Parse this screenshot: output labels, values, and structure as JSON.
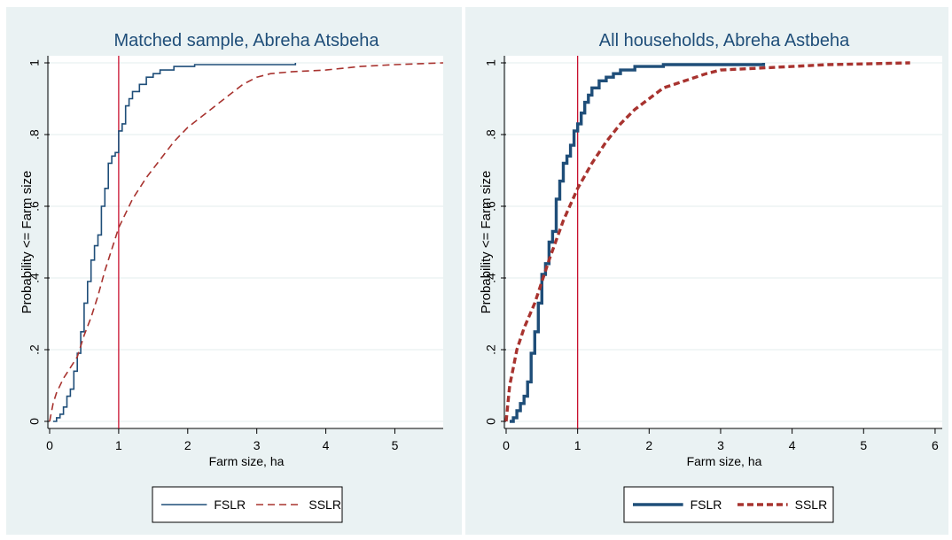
{
  "chart_data": [
    {
      "type": "line",
      "title": "Matched sample, Abreha Atsbeha",
      "xlabel": "Farm size, ha",
      "ylabel": "Probability <= Farm size",
      "xlim": [
        0,
        5.7
      ],
      "ylim": [
        0,
        1
      ],
      "xticks": [
        "0",
        "1",
        "2",
        "3",
        "4",
        "5"
      ],
      "yticks": [
        "0",
        ".2",
        ".4",
        ".6",
        ".8",
        "1"
      ],
      "grid": true,
      "legend": "bottom",
      "reference_line": {
        "x": 1,
        "color": "#c8102e"
      },
      "series": [
        {
          "name": "FSLR",
          "style": "step-solid-thin",
          "color": "#1f4e79",
          "points": [
            [
              0.05,
              0
            ],
            [
              0.1,
              0.01
            ],
            [
              0.15,
              0.02
            ],
            [
              0.2,
              0.04
            ],
            [
              0.25,
              0.07
            ],
            [
              0.3,
              0.09
            ],
            [
              0.35,
              0.14
            ],
            [
              0.4,
              0.19
            ],
            [
              0.45,
              0.25
            ],
            [
              0.5,
              0.33
            ],
            [
              0.55,
              0.39
            ],
            [
              0.6,
              0.45
            ],
            [
              0.65,
              0.49
            ],
            [
              0.7,
              0.52
            ],
            [
              0.75,
              0.6
            ],
            [
              0.8,
              0.65
            ],
            [
              0.85,
              0.72
            ],
            [
              0.9,
              0.74
            ],
            [
              0.95,
              0.75
            ],
            [
              1.0,
              0.81
            ],
            [
              1.05,
              0.83
            ],
            [
              1.1,
              0.88
            ],
            [
              1.15,
              0.9
            ],
            [
              1.2,
              0.92
            ],
            [
              1.3,
              0.94
            ],
            [
              1.4,
              0.96
            ],
            [
              1.5,
              0.97
            ],
            [
              1.6,
              0.98
            ],
            [
              1.8,
              0.99
            ],
            [
              2.1,
              0.995
            ],
            [
              3.56,
              1
            ]
          ]
        },
        {
          "name": "SSLR",
          "style": "dashed",
          "color": "#a8332f",
          "points": [
            [
              0,
              0
            ],
            [
              0.05,
              0.05
            ],
            [
              0.1,
              0.08
            ],
            [
              0.2,
              0.12
            ],
            [
              0.3,
              0.15
            ],
            [
              0.4,
              0.18
            ],
            [
              0.5,
              0.24
            ],
            [
              0.6,
              0.29
            ],
            [
              0.7,
              0.35
            ],
            [
              0.8,
              0.42
            ],
            [
              0.9,
              0.48
            ],
            [
              1.0,
              0.54
            ],
            [
              1.2,
              0.62
            ],
            [
              1.4,
              0.68
            ],
            [
              1.6,
              0.73
            ],
            [
              1.8,
              0.78
            ],
            [
              2.0,
              0.82
            ],
            [
              2.2,
              0.85
            ],
            [
              2.4,
              0.88
            ],
            [
              2.6,
              0.91
            ],
            [
              2.8,
              0.94
            ],
            [
              3.0,
              0.96
            ],
            [
              3.2,
              0.97
            ],
            [
              3.5,
              0.975
            ],
            [
              4.0,
              0.98
            ],
            [
              4.5,
              0.99
            ],
            [
              5.0,
              0.995
            ],
            [
              5.7,
              1
            ]
          ]
        }
      ]
    },
    {
      "type": "line",
      "title": "All households, Abreha Astbeha",
      "xlabel": "Farm size, ha",
      "ylabel": "Probability <= Farm size",
      "xlim": [
        0,
        6.1
      ],
      "ylim": [
        0,
        1
      ],
      "xticks": [
        "0",
        "1",
        "2",
        "3",
        "4",
        "5",
        "6"
      ],
      "yticks": [
        "0",
        ".2",
        ".4",
        ".6",
        ".8",
        "1"
      ],
      "grid": true,
      "legend": "bottom",
      "reference_line": {
        "x": 1,
        "color": "#c8102e"
      },
      "series": [
        {
          "name": "FSLR",
          "style": "step-solid-thick",
          "color": "#1f4e79",
          "points": [
            [
              0.05,
              0
            ],
            [
              0.1,
              0.01
            ],
            [
              0.15,
              0.03
            ],
            [
              0.2,
              0.05
            ],
            [
              0.25,
              0.07
            ],
            [
              0.3,
              0.11
            ],
            [
              0.35,
              0.19
            ],
            [
              0.4,
              0.25
            ],
            [
              0.45,
              0.33
            ],
            [
              0.5,
              0.41
            ],
            [
              0.55,
              0.44
            ],
            [
              0.6,
              0.5
            ],
            [
              0.65,
              0.53
            ],
            [
              0.7,
              0.62
            ],
            [
              0.75,
              0.67
            ],
            [
              0.8,
              0.72
            ],
            [
              0.85,
              0.74
            ],
            [
              0.9,
              0.77
            ],
            [
              0.95,
              0.81
            ],
            [
              1.0,
              0.83
            ],
            [
              1.05,
              0.86
            ],
            [
              1.1,
              0.89
            ],
            [
              1.15,
              0.91
            ],
            [
              1.2,
              0.93
            ],
            [
              1.3,
              0.95
            ],
            [
              1.4,
              0.96
            ],
            [
              1.5,
              0.97
            ],
            [
              1.6,
              0.98
            ],
            [
              1.8,
              0.99
            ],
            [
              2.2,
              0.995
            ],
            [
              3.6,
              1
            ]
          ]
        },
        {
          "name": "SSLR",
          "style": "dashed-thick",
          "color": "#a8332f",
          "points": [
            [
              0,
              0
            ],
            [
              0.05,
              0.1
            ],
            [
              0.1,
              0.15
            ],
            [
              0.15,
              0.2
            ],
            [
              0.25,
              0.26
            ],
            [
              0.4,
              0.33
            ],
            [
              0.6,
              0.45
            ],
            [
              0.8,
              0.56
            ],
            [
              1.0,
              0.65
            ],
            [
              1.2,
              0.72
            ],
            [
              1.4,
              0.78
            ],
            [
              1.6,
              0.83
            ],
            [
              1.8,
              0.87
            ],
            [
              2.0,
              0.9
            ],
            [
              2.2,
              0.93
            ],
            [
              2.5,
              0.95
            ],
            [
              2.8,
              0.97
            ],
            [
              3.0,
              0.98
            ],
            [
              3.5,
              0.985
            ],
            [
              4.0,
              0.99
            ],
            [
              4.5,
              0.995
            ],
            [
              5.0,
              0.997
            ],
            [
              5.65,
              1
            ]
          ]
        }
      ]
    }
  ]
}
